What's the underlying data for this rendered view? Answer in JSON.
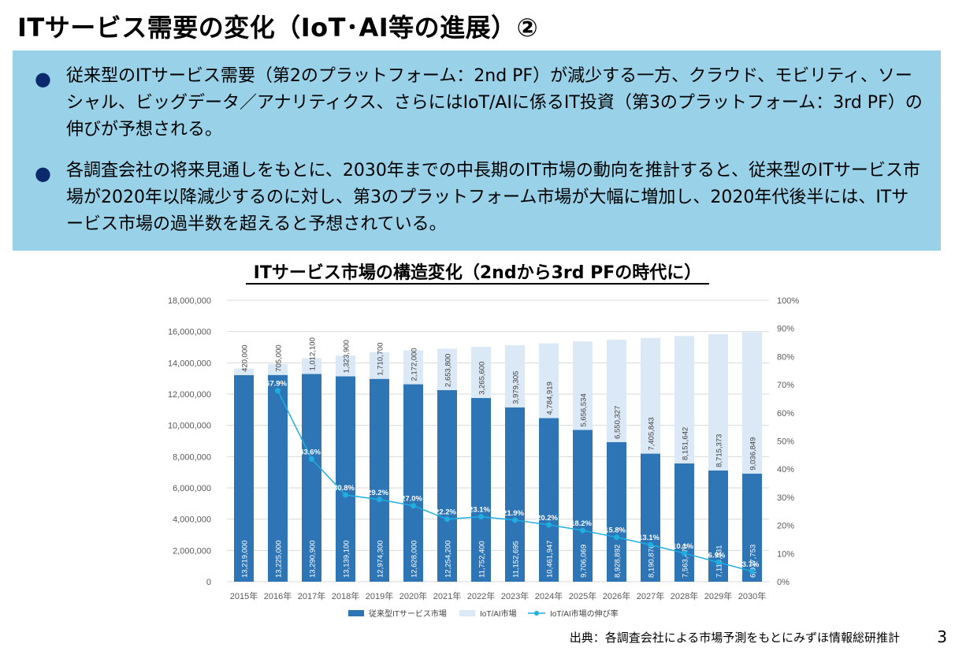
{
  "slide": {
    "title": "ITサービス需要の変化（IoT･AI等の進展）②",
    "bullets": [
      "従来型のITサービス需要（第2のプラットフォーム：2nd PF）が減少する一方、クラウド、モビリティ、ソーシャル、ビッグデータ／アナリティクス、さらにはIoT/AIに係るIT投資（第3のプラットフォーム：3rd PF）の伸びが予想される。",
      "各調査会社の将来見通しをもとに、2030年までの中長期のIT市場の動向を推計すると、従来型のITサービス市場が2020年以降減少するのに対し、第3のプラットフォーム市場が大幅に増加し、2020年代後半には、ITサービス市場の過半数を超えると予想されている。"
    ],
    "bullet_symbol": "●",
    "source": "出典：各調査会社による市場予測をもとにみずほ情報総研推計",
    "page_number": "3"
  },
  "colors": {
    "box": "#99d1e8",
    "conventional": "#2e75b6",
    "iot": "#dbe8f5",
    "growth": "#1eaee0"
  },
  "chart_data": {
    "type": "bar",
    "stacked": true,
    "title": "ITサービス市場の構造変化（2ndから3rd PFの時代に）",
    "categories": [
      "2015年",
      "2016年",
      "2017年",
      "2018年",
      "2019年",
      "2020年",
      "2021年",
      "2022年",
      "2023年",
      "2024年",
      "2025年",
      "2026年",
      "2027年",
      "2028年",
      "2029年",
      "2030年"
    ],
    "series": [
      {
        "name": "従来型ITサービス市場",
        "values": [
          13219000,
          13225000,
          13290900,
          13139100,
          12974300,
          12628000,
          12254200,
          11752400,
          11152695,
          10461947,
          9706069,
          8928892,
          8190876,
          7563470,
          7119031,
          6917753
        ],
        "labels": [
          "13,219,000",
          "13,225,000",
          "13,290,900",
          "13,139,100",
          "12,974,300",
          "12,628,000",
          "12,254,200",
          "11,752,400",
          "11,152,695",
          "10,461,947",
          "9,706,069",
          "8,928,892",
          "8,190,876",
          "7,563,470",
          "7,119,031",
          "6,917,753"
        ]
      },
      {
        "name": "IoT/AI市場",
        "values": [
          420000,
          705000,
          1012100,
          1323900,
          1710700,
          2172000,
          2653800,
          3265600,
          3979305,
          4784919,
          5656534,
          6550327,
          7405843,
          8151642,
          8715373,
          9036849
        ],
        "labels": [
          "420,000",
          "705,000",
          "1,012,100",
          "1,323,900",
          "1,710,700",
          "2,172,000",
          "2,653,800",
          "3,265,600",
          "3,979,305",
          "4,784,919",
          "5,656,534",
          "6,550,327",
          "7,405,843",
          "8,151,642",
          "8,715,373",
          "9,036,849"
        ]
      }
    ],
    "line": {
      "name": "IoT/AI市場の伸び率",
      "axis": "right",
      "values": [
        null,
        67.9,
        43.6,
        30.8,
        29.2,
        27.0,
        22.2,
        23.1,
        21.9,
        20.2,
        18.2,
        15.8,
        13.1,
        10.1,
        6.9,
        3.7
      ],
      "labels": [
        "",
        "67.9%",
        "43.6%",
        "30.8%",
        "29.2%",
        "27.0%",
        "22.2%",
        "23.1%",
        "21.9%",
        "20.2%",
        "18.2%",
        "15.8%",
        "13.1%",
        "10.1%",
        "6.9%",
        "3.7%"
      ]
    },
    "y_left": {
      "min": 0,
      "max": 18000000,
      "ticks": [
        "0",
        "2,000,000",
        "4,000,000",
        "6,000,000",
        "8,000,000",
        "10,000,000",
        "12,000,000",
        "14,000,000",
        "16,000,000",
        "18,000,000"
      ]
    },
    "y_right": {
      "min": 0,
      "max": 100,
      "ticks": [
        "0%",
        "10%",
        "20%",
        "30%",
        "40%",
        "50%",
        "60%",
        "70%",
        "80%",
        "90%",
        "100%"
      ]
    },
    "grid": true,
    "legend": "bottom"
  }
}
